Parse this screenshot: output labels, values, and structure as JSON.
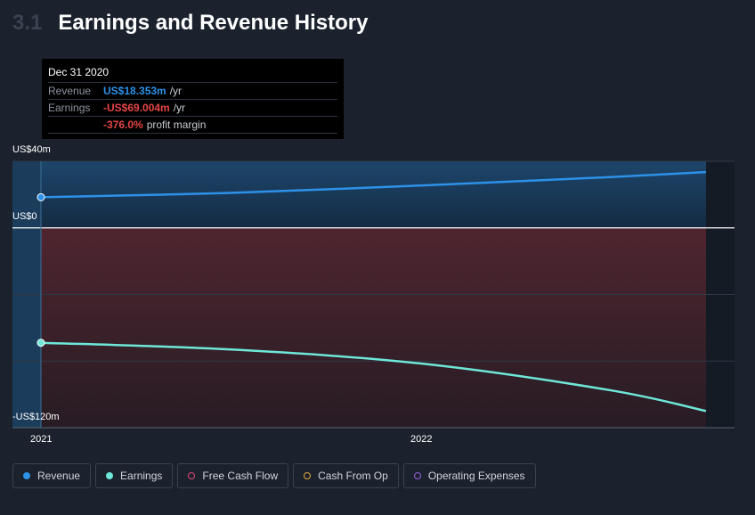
{
  "header": {
    "section_num": "3.1",
    "title": "Earnings and Revenue History"
  },
  "tooltip": {
    "date": "Dec 31 2020",
    "revenue_label": "Revenue",
    "revenue_value": "US$18.353m",
    "revenue_unit": "/yr",
    "earnings_label": "Earnings",
    "earnings_value": "-US$69.004m",
    "earnings_unit": "/yr",
    "margin_value": "-376.0%",
    "margin_text": "profit margin"
  },
  "axis": {
    "top_label": "US$40m",
    "zero_label": "US$0",
    "bottom_label": "-US$120m",
    "x_label_1": "2021",
    "x_label_2": "2022"
  },
  "legend": [
    {
      "label": "Revenue",
      "color": "#2e91e8",
      "filled": true
    },
    {
      "label": "Earnings",
      "color": "#6ee7d8",
      "filled": true
    },
    {
      "label": "Free Cash Flow",
      "color": "#e0487a",
      "filled": false
    },
    {
      "label": "Cash From Op",
      "color": "#e5a93c",
      "filled": false
    },
    {
      "label": "Operating Expenses",
      "color": "#9b5de5",
      "filled": false
    }
  ],
  "chart_data": {
    "type": "line",
    "ylim": [
      -120,
      40
    ],
    "xlim": [
      "2020-12-31",
      "2022-09-30"
    ],
    "series": [
      {
        "name": "Revenue",
        "color": "#2e91e8",
        "points": [
          {
            "x": "2020-12-31",
            "y": 18.4
          },
          {
            "x": "2021-06-30",
            "y": 21.0
          },
          {
            "x": "2021-12-31",
            "y": 25.5
          },
          {
            "x": "2022-06-30",
            "y": 30.5
          },
          {
            "x": "2022-09-30",
            "y": 33.5
          }
        ]
      },
      {
        "name": "Earnings",
        "color": "#6ee7d8",
        "points": [
          {
            "x": "2020-12-31",
            "y": -69.0
          },
          {
            "x": "2021-06-30",
            "y": -73.0
          },
          {
            "x": "2021-12-31",
            "y": -81.5
          },
          {
            "x": "2022-06-30",
            "y": -97.5
          },
          {
            "x": "2022-09-30",
            "y": -110.0
          }
        ]
      }
    ]
  }
}
